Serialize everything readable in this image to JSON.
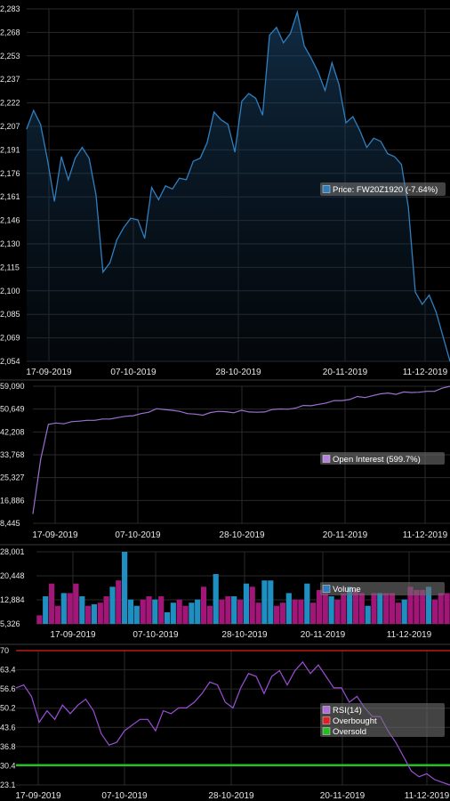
{
  "chart_data": [
    {
      "type": "area",
      "ylim": [
        2054,
        2283
      ],
      "yticks": [
        "2,283",
        "2,268",
        "2,253",
        "2,237",
        "2,222",
        "2,207",
        "2,191",
        "2,176",
        "2,161",
        "2,146",
        "2,130",
        "2,115",
        "2,100",
        "2,085",
        "2,069",
        "2,054"
      ],
      "xticks": [
        "17-09-2019",
        "07-10-2019",
        "28-10-2019",
        "20-11-2019",
        "11-12-2019"
      ],
      "legend": [
        {
          "name": "Price: FW20Z1920 (-7.64%)",
          "color": "#2f7fc0"
        }
      ],
      "color": "#2f7fc0",
      "values": [
        2205,
        2217,
        2208,
        2185,
        2158,
        2187,
        2172,
        2186,
        2193,
        2186,
        2162,
        2112,
        2118,
        2133,
        2141,
        2147,
        2146,
        2134,
        2167,
        2159,
        2168,
        2166,
        2173,
        2172,
        2184,
        2186,
        2196,
        2216,
        2211,
        2208,
        2190,
        2223,
        2228,
        2225,
        2214,
        2266,
        2271,
        2261,
        2267,
        2281,
        2259,
        2251,
        2242,
        2230,
        2248,
        2234,
        2209,
        2213,
        2204,
        2193,
        2199,
        2197,
        2189,
        2187,
        2182,
        2154,
        2099,
        2091,
        2097,
        2086,
        2070,
        2054
      ]
    },
    {
      "type": "line",
      "ylim": [
        8445,
        59090
      ],
      "yticks": [
        "59,090",
        "50,649",
        "42,208",
        "33,768",
        "25,327",
        "16,886",
        "8,445"
      ],
      "xticks": [
        "17-09-2019",
        "07-10-2019",
        "28-10-2019",
        "20-11-2019",
        "11-12-2019"
      ],
      "legend": [
        {
          "name": "Open Interest (599.7%)",
          "color": "#b882e0"
        }
      ],
      "color": "#9b6fd0",
      "values": [
        12000,
        32000,
        45000,
        45500,
        45200,
        46000,
        46200,
        46500,
        46500,
        47000,
        47000,
        47500,
        48000,
        48200,
        49000,
        49500,
        50800,
        50500,
        50200,
        49800,
        49000,
        48800,
        48400,
        49400,
        49800,
        49700,
        49300,
        50200,
        49600,
        49500,
        49600,
        50500,
        50700,
        50600,
        51000,
        52000,
        51900,
        52400,
        52900,
        53800,
        53800,
        54200,
        55300,
        54900,
        55600,
        56300,
        56600,
        56100,
        57000,
        56800,
        56900,
        57200,
        57200,
        58400,
        59090
      ]
    },
    {
      "type": "bar",
      "ylim": [
        5326,
        28001
      ],
      "yticks": [
        "28,001",
        "20,448",
        "12,884",
        "5,326"
      ],
      "xticks": [
        "17-09-2019",
        "07-10-2019",
        "28-10-2019",
        "20-11-2019",
        "11-12-2019"
      ],
      "legend": [
        {
          "name": "Volume",
          "color": "#2f7fc0"
        }
      ],
      "colors": {
        "up": "#1e8fc0",
        "down": "#a11677"
      },
      "values": [
        8000,
        14000,
        18000,
        11000,
        15000,
        15000,
        18000,
        14000,
        11000,
        11500,
        12000,
        14000,
        17000,
        19000,
        28000,
        13000,
        11000,
        13000,
        14000,
        13000,
        14000,
        9000,
        12000,
        13000,
        11000,
        12000,
        13000,
        17000,
        11000,
        21000,
        13000,
        14000,
        14000,
        13000,
        18000,
        17000,
        12000,
        19000,
        19000,
        11000,
        12000,
        15000,
        13000,
        13000,
        18000,
        12000,
        16000,
        15000,
        14000,
        13000,
        15000,
        17000,
        16000,
        15000,
        11000,
        15000,
        15000,
        15000,
        15000,
        12000,
        13000,
        17000,
        16000,
        16000,
        17000,
        13000,
        15000,
        15000
      ],
      "up": [
        0,
        1,
        0,
        0,
        1,
        0,
        0,
        1,
        0,
        1,
        0,
        0,
        1,
        0,
        1,
        1,
        1,
        0,
        0,
        1,
        0,
        1,
        1,
        0,
        0,
        1,
        1,
        0,
        0,
        1,
        0,
        0,
        1,
        0,
        1,
        0,
        0,
        1,
        1,
        0,
        0,
        1,
        0,
        0,
        1,
        0,
        0,
        0,
        1,
        0,
        0,
        1,
        0,
        0,
        1,
        0,
        1,
        0,
        0,
        0,
        1,
        0,
        0,
        0,
        1,
        0,
        0,
        0
      ]
    },
    {
      "type": "line",
      "ylim": [
        23.1,
        70
      ],
      "yticks": [
        "70",
        "63.4",
        "56.6",
        "50.2",
        "43.6",
        "36.8",
        "30.4",
        "23.1"
      ],
      "xticks": [
        "17-09-2019",
        "07-10-2019",
        "28-10-2019",
        "20-11-2019",
        "11-12-2019"
      ],
      "overbought": 70,
      "oversold": 30,
      "legend": [
        {
          "name": "RSI(14)",
          "color": "#b16ee0"
        },
        {
          "name": "Overbought",
          "color": "#e02020"
        },
        {
          "name": "Oversold",
          "color": "#20c020"
        }
      ],
      "color": "#9b4fd8",
      "values": [
        57,
        58,
        54,
        45,
        49,
        46,
        51,
        48,
        51,
        53,
        49,
        41,
        37,
        38,
        42,
        44,
        46,
        46,
        42,
        49,
        48,
        50,
        50,
        52,
        55,
        59,
        58,
        52,
        50,
        57,
        62,
        61,
        55,
        61,
        63,
        58,
        63,
        66,
        62,
        65,
        61,
        57,
        57,
        52,
        54,
        50,
        47,
        47,
        42,
        38,
        33,
        28,
        26,
        27,
        25,
        24,
        23.1
      ]
    }
  ]
}
